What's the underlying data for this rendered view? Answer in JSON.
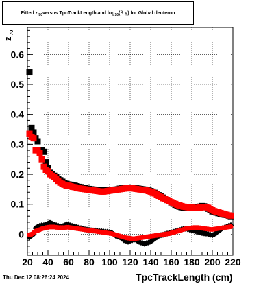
{
  "header": {
    "title_pre": "Fitted z",
    "title_sub": "I70",
    "title_mid": " versus TpcTrackLength and log",
    "title_sub2": "10",
    "title_paren_open": "(",
    "title_greek": " β γ ",
    "title_post": ") for Global deuteron"
  },
  "footer": {
    "date": "Thu Dec 12 08:26:24 2024"
  },
  "chart_data": {
    "type": "scatter",
    "title": "Fitted z_I70 versus TpcTrackLength and log10(βγ) for Global deuteron",
    "xlabel": "TpcTrackLength (cm)",
    "ylabel_main": "z",
    "ylabel_sub": "I70",
    "xlim": [
      20,
      220
    ],
    "ylim": [
      -0.07,
      0.69
    ],
    "x_ticks": [
      20,
      40,
      60,
      80,
      100,
      120,
      140,
      160,
      180,
      200,
      220
    ],
    "x_tick_labels": [
      "20",
      "40",
      "60",
      "80",
      "100",
      "120",
      "140",
      "160",
      "180",
      "200",
      "220"
    ],
    "y_ticks": [
      0,
      0.1,
      0.2,
      0.3,
      0.4,
      0.5,
      0.6
    ],
    "y_tick_labels": [
      "0",
      "0.1",
      "0.2",
      "0.3",
      "0.4",
      "0.5",
      "0.6"
    ],
    "grid": true,
    "series": [
      {
        "marker": "square",
        "color": "#000000",
        "x": [
          22,
          24,
          26,
          28,
          30,
          32,
          34,
          36,
          38,
          40,
          42,
          44,
          46,
          48,
          50,
          52,
          54,
          56,
          58,
          60,
          62,
          64,
          66,
          68,
          70,
          72,
          74,
          76,
          78,
          80,
          82,
          84,
          86,
          88,
          90,
          92,
          94,
          96,
          98,
          100,
          102,
          104,
          106,
          108,
          110,
          112,
          114,
          116,
          118,
          120,
          122,
          124,
          126,
          128,
          130,
          132,
          134,
          136,
          138,
          140,
          142,
          144,
          146,
          148,
          150,
          152,
          154,
          156,
          158,
          160,
          162,
          164,
          166,
          168,
          170,
          172,
          174,
          176,
          178,
          180,
          182,
          184,
          186,
          188,
          190,
          192,
          194,
          196,
          198,
          200,
          202,
          204,
          206,
          208,
          210,
          212,
          214,
          216,
          218
        ],
        "y": [
          0.54,
          0.355,
          0.34,
          0.32,
          0.31,
          0.28,
          0.28,
          0.275,
          0.24,
          0.22,
          0.205,
          0.2,
          0.195,
          0.19,
          0.185,
          0.18,
          0.175,
          0.17,
          0.168,
          0.166,
          0.165,
          0.163,
          0.162,
          0.16,
          0.158,
          0.157,
          0.155,
          0.154,
          0.152,
          0.151,
          0.15,
          0.149,
          0.148,
          0.147,
          0.147,
          0.146,
          0.147,
          0.148,
          0.147,
          0.146,
          0.147,
          0.148,
          0.149,
          0.15,
          0.152,
          0.153,
          0.154,
          0.155,
          0.155,
          0.155,
          0.155,
          0.154,
          0.153,
          0.152,
          0.151,
          0.15,
          0.149,
          0.148,
          0.146,
          0.144,
          0.142,
          0.138,
          0.134,
          0.13,
          0.126,
          0.122,
          0.118,
          0.114,
          0.11,
          0.106,
          0.102,
          0.098,
          0.095,
          0.092,
          0.09,
          0.089,
          0.088,
          0.088,
          0.089,
          0.09,
          0.09,
          0.09,
          0.09,
          0.092,
          0.094,
          0.093,
          0.09,
          0.085,
          0.08,
          0.076,
          0.074,
          0.072,
          0.07,
          0.068,
          0.066,
          0.065,
          0.064,
          0.062,
          0.06
        ]
      },
      {
        "marker": "square",
        "color": "#ff0000",
        "x": [
          22,
          24,
          26,
          28,
          30,
          32,
          34,
          36,
          38,
          40,
          42,
          44,
          46,
          48,
          50,
          52,
          54,
          56,
          58,
          60,
          62,
          64,
          66,
          68,
          70,
          72,
          74,
          76,
          78,
          80,
          82,
          84,
          86,
          88,
          90,
          92,
          94,
          96,
          98,
          100,
          102,
          104,
          106,
          108,
          110,
          112,
          114,
          116,
          118,
          120,
          122,
          124,
          126,
          128,
          130,
          132,
          134,
          136,
          138,
          140,
          142,
          144,
          146,
          148,
          150,
          152,
          154,
          156,
          158,
          160,
          162,
          164,
          166,
          168,
          170,
          172,
          174,
          176,
          178,
          180,
          182,
          184,
          186,
          188,
          190,
          192,
          194,
          196,
          198,
          200,
          202,
          204,
          206,
          208,
          210,
          212,
          214,
          216,
          218
        ],
        "y": [
          0.335,
          0.325,
          0.32,
          0.28,
          0.28,
          0.27,
          0.25,
          0.225,
          0.215,
          0.21,
          0.2,
          0.195,
          0.19,
          0.185,
          0.178,
          0.172,
          0.168,
          0.165,
          0.162,
          0.162,
          0.16,
          0.158,
          0.157,
          0.155,
          0.153,
          0.152,
          0.151,
          0.15,
          0.149,
          0.148,
          0.147,
          0.146,
          0.145,
          0.144,
          0.143,
          0.142,
          0.142,
          0.143,
          0.144,
          0.145,
          0.146,
          0.147,
          0.148,
          0.149,
          0.15,
          0.151,
          0.152,
          0.153,
          0.153,
          0.153,
          0.153,
          0.152,
          0.151,
          0.15,
          0.149,
          0.148,
          0.147,
          0.146,
          0.144,
          0.142,
          0.14,
          0.136,
          0.132,
          0.128,
          0.124,
          0.12,
          0.117,
          0.114,
          0.11,
          0.107,
          0.104,
          0.101,
          0.098,
          0.096,
          0.094,
          0.092,
          0.091,
          0.09,
          0.089,
          0.089,
          0.088,
          0.088,
          0.088,
          0.089,
          0.09,
          0.091,
          0.09,
          0.088,
          0.084,
          0.08,
          0.077,
          0.075,
          0.073,
          0.071,
          0.069,
          0.067,
          0.065,
          0.063,
          0.062
        ]
      },
      {
        "marker": "diamond",
        "color": "#000000",
        "x": [
          22,
          24,
          26,
          28,
          30,
          32,
          34,
          36,
          38,
          40,
          42,
          44,
          46,
          48,
          50,
          52,
          54,
          56,
          58,
          60,
          62,
          64,
          66,
          68,
          70,
          72,
          74,
          76,
          78,
          80,
          82,
          84,
          86,
          88,
          90,
          92,
          94,
          96,
          98,
          100,
          102,
          104,
          106,
          108,
          110,
          112,
          114,
          116,
          118,
          120,
          122,
          124,
          126,
          128,
          130,
          132,
          134,
          136,
          138,
          140,
          142,
          144,
          146,
          148,
          150,
          152,
          154,
          156,
          158,
          160,
          162,
          164,
          166,
          168,
          170,
          172,
          174,
          176,
          178,
          180,
          182,
          184,
          186,
          188,
          190,
          192,
          194,
          196,
          198,
          200,
          202,
          204,
          206,
          208,
          210,
          212,
          214,
          216,
          218
        ],
        "y": [
          -0.01,
          -0.005,
          0.0,
          0.02,
          0.025,
          0.028,
          0.03,
          0.03,
          0.032,
          0.035,
          0.04,
          0.035,
          0.032,
          0.03,
          0.028,
          0.026,
          0.027,
          0.03,
          0.033,
          0.032,
          0.03,
          0.028,
          0.026,
          0.024,
          0.022,
          0.02,
          0.018,
          0.016,
          0.015,
          0.014,
          0.013,
          0.012,
          0.012,
          0.011,
          0.01,
          0.01,
          0.009,
          0.008,
          0.008,
          0.007,
          0.005,
          0.0,
          -0.005,
          -0.008,
          -0.01,
          -0.015,
          -0.02,
          -0.022,
          -0.025,
          -0.022,
          -0.02,
          -0.018,
          -0.02,
          -0.025,
          -0.028,
          -0.03,
          -0.032,
          -0.03,
          -0.028,
          -0.025,
          -0.02,
          -0.015,
          -0.01,
          -0.005,
          -0.003,
          -0.002,
          0.0,
          0.002,
          0.004,
          0.006,
          0.008,
          0.01,
          0.012,
          0.014,
          0.016,
          0.018,
          0.018,
          0.017,
          0.015,
          0.013,
          0.012,
          0.01,
          0.008,
          0.006,
          0.004,
          0.003,
          0.002,
          0.0,
          -0.002,
          -0.003,
          0.0,
          0.005,
          0.01,
          0.015,
          0.02,
          0.022,
          0.025,
          0.028,
          0.03
        ]
      },
      {
        "marker": "circle",
        "color": "#ff0000",
        "x": [
          22,
          24,
          26,
          28,
          30,
          32,
          34,
          36,
          38,
          40,
          42,
          44,
          46,
          48,
          50,
          52,
          54,
          56,
          58,
          60,
          62,
          64,
          66,
          68,
          70,
          72,
          74,
          76,
          78,
          80,
          82,
          84,
          86,
          88,
          90,
          92,
          94,
          96,
          98,
          100,
          102,
          104,
          106,
          108,
          110,
          112,
          114,
          116,
          118,
          120,
          122,
          124,
          126,
          128,
          130,
          132,
          134,
          136,
          138,
          140,
          142,
          144,
          146,
          148,
          150,
          152,
          154,
          156,
          158,
          160,
          162,
          164,
          166,
          168,
          170,
          172,
          174,
          176,
          178,
          180,
          182,
          184,
          186,
          188,
          190,
          192,
          194,
          196,
          198,
          200,
          202,
          204,
          206,
          208,
          210,
          212,
          214,
          216,
          218
        ],
        "y": [
          -0.002,
          0.0,
          0.005,
          0.01,
          0.012,
          0.015,
          0.018,
          0.02,
          0.022,
          0.023,
          0.024,
          0.024,
          0.024,
          0.023,
          0.022,
          0.022,
          0.022,
          0.022,
          0.023,
          0.023,
          0.022,
          0.021,
          0.02,
          0.019,
          0.018,
          0.017,
          0.016,
          0.015,
          0.014,
          0.013,
          0.012,
          0.011,
          0.01,
          0.009,
          0.008,
          0.007,
          0.006,
          0.005,
          0.004,
          0.003,
          0.002,
          0.0,
          -0.002,
          -0.004,
          -0.006,
          -0.008,
          -0.01,
          -0.012,
          -0.013,
          -0.014,
          -0.015,
          -0.015,
          -0.014,
          -0.013,
          -0.012,
          -0.011,
          -0.01,
          -0.009,
          -0.008,
          -0.007,
          -0.006,
          -0.005,
          -0.004,
          -0.003,
          -0.002,
          -0.001,
          0.0,
          0.001,
          0.002,
          0.004,
          0.006,
          0.008,
          0.01,
          0.012,
          0.014,
          0.016,
          0.018,
          0.019,
          0.02,
          0.021,
          0.022,
          0.022,
          0.022,
          0.021,
          0.02,
          0.019,
          0.018,
          0.017,
          0.016,
          0.016,
          0.017,
          0.018,
          0.019,
          0.02,
          0.021,
          0.022,
          0.023,
          0.024,
          0.025
        ]
      }
    ]
  }
}
